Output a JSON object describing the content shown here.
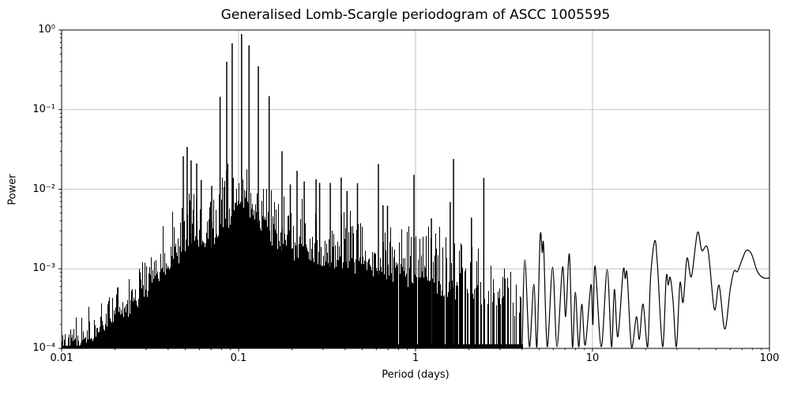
{
  "figure": {
    "background": "#ffffff"
  },
  "chart_data": {
    "type": "line",
    "title": "Generalised Lomb-Scargle periodogram of ASCC 1005595",
    "xlabel": "Period (days)",
    "ylabel": "Power",
    "xscale": "log",
    "yscale": "log",
    "xlim": [
      0.01,
      100
    ],
    "ylim": [
      0.0001,
      1
    ],
    "grid": true,
    "legend": false,
    "line_color": "#000000",
    "grid_color": "#b0b0b0",
    "x_tick_values": [
      0.01,
      0.1,
      1,
      10,
      100
    ],
    "x_tick_labels": [
      "0.01",
      "0.1",
      "1",
      "10",
      "100"
    ],
    "y_tick_values": [
      1,
      0.1,
      0.01,
      0.001,
      0.0001
    ],
    "y_tick_labels": [
      "10⁰",
      "10⁻¹",
      "10⁻²",
      "10⁻³",
      "10⁻⁴"
    ],
    "main_peak": {
      "period_days": 0.104,
      "power": 0.89
    },
    "peaks": [
      [
        0.0487,
        0.026
      ],
      [
        0.0512,
        0.034
      ],
      [
        0.0539,
        0.023
      ],
      [
        0.058,
        0.021
      ],
      [
        0.0615,
        0.013
      ],
      [
        0.0705,
        0.011
      ],
      [
        0.0786,
        0.145
      ],
      [
        0.0857,
        0.4
      ],
      [
        0.092,
        0.68
      ],
      [
        0.104,
        0.89
      ],
      [
        0.1145,
        0.64
      ],
      [
        0.1293,
        0.35
      ],
      [
        0.1489,
        0.148
      ],
      [
        0.176,
        0.03
      ],
      [
        0.196,
        0.0115
      ],
      [
        0.214,
        0.017
      ],
      [
        0.235,
        0.0125
      ],
      [
        0.274,
        0.0133
      ],
      [
        0.287,
        0.012
      ],
      [
        0.33,
        0.012
      ],
      [
        0.38,
        0.014
      ],
      [
        0.41,
        0.0095
      ],
      [
        0.47,
        0.0119
      ],
      [
        0.617,
        0.0208
      ],
      [
        0.655,
        0.0063
      ],
      [
        0.694,
        0.0062
      ],
      [
        0.98,
        0.0152
      ],
      [
        1.23,
        0.0043
      ],
      [
        1.57,
        0.0069
      ],
      [
        1.64,
        0.024
      ],
      [
        2.07,
        0.0044
      ],
      [
        2.43,
        0.0139
      ]
    ],
    "noise_envelope": [
      [
        0.01,
        0.00013,
        0.00022
      ],
      [
        0.013,
        0.00015,
        0.00032
      ],
      [
        0.017,
        0.00022,
        0.00055
      ],
      [
        0.022,
        0.00032,
        0.0011
      ],
      [
        0.028,
        0.00055,
        0.0017
      ],
      [
        0.035,
        0.0009,
        0.0035
      ],
      [
        0.042,
        0.0015,
        0.008
      ],
      [
        0.05,
        0.0022,
        0.014
      ],
      [
        0.06,
        0.0024,
        0.012
      ],
      [
        0.07,
        0.0028,
        0.016
      ],
      [
        0.085,
        0.0045,
        0.024
      ],
      [
        0.105,
        0.008,
        0.032
      ],
      [
        0.13,
        0.005,
        0.022
      ],
      [
        0.155,
        0.003,
        0.013
      ],
      [
        0.2,
        0.002,
        0.01
      ],
      [
        0.3,
        0.0016,
        0.008
      ],
      [
        0.45,
        0.0013,
        0.007
      ],
      [
        0.7,
        0.0011,
        0.005
      ],
      [
        1.0,
        0.00085,
        0.004
      ],
      [
        1.5,
        0.00065,
        0.0035
      ],
      [
        2.2,
        0.00055,
        0.0026
      ],
      [
        3.0,
        0.00045,
        0.0019
      ],
      [
        4.0,
        0.00038,
        0.0013
      ]
    ],
    "smooth_tail": [
      [
        4.0,
        0.000105
      ],
      [
        4.15,
        0.0013
      ],
      [
        4.4,
        0.000105
      ],
      [
        4.66,
        0.00064
      ],
      [
        4.85,
        0.000105
      ],
      [
        5.06,
        0.0025
      ],
      [
        5.2,
        0.0016
      ],
      [
        5.3,
        0.0019
      ],
      [
        5.55,
        0.000105
      ],
      [
        5.95,
        0.00105
      ],
      [
        6.3,
        0.000105
      ],
      [
        6.77,
        0.00105
      ],
      [
        7.05,
        0.00025
      ],
      [
        7.4,
        0.00153
      ],
      [
        7.7,
        0.000105
      ],
      [
        8.0,
        0.00051
      ],
      [
        8.35,
        0.000105
      ],
      [
        8.7,
        0.00036
      ],
      [
        9.1,
        0.00011
      ],
      [
        9.8,
        0.00063
      ],
      [
        10.05,
        0.0002
      ],
      [
        10.35,
        0.00108
      ],
      [
        11.2,
        0.000105
      ],
      [
        12.1,
        0.00098
      ],
      [
        12.8,
        0.000105
      ],
      [
        13.3,
        0.00055
      ],
      [
        13.9,
        0.00014
      ],
      [
        14.9,
        0.00094
      ],
      [
        15.3,
        0.00075
      ],
      [
        15.7,
        0.00084
      ],
      [
        16.6,
        0.000105
      ],
      [
        17.7,
        0.00025
      ],
      [
        18.4,
        0.00013
      ],
      [
        19.3,
        0.00036
      ],
      [
        20.5,
        0.000105
      ],
      [
        21.3,
        0.0008
      ],
      [
        22.5,
        0.00225
      ],
      [
        23.3,
        0.0011
      ],
      [
        24.9,
        0.000105
      ],
      [
        26.1,
        0.00078
      ],
      [
        26.8,
        0.00062
      ],
      [
        27.5,
        0.00078
      ],
      [
        28.5,
        0.0004
      ],
      [
        29.8,
        0.000105
      ],
      [
        31.2,
        0.00066
      ],
      [
        32.5,
        0.00038
      ],
      [
        34.2,
        0.00136
      ],
      [
        36.2,
        0.0008
      ],
      [
        39.2,
        0.00285
      ],
      [
        41.5,
        0.0017
      ],
      [
        44.9,
        0.00175
      ],
      [
        48.8,
        0.00031
      ],
      [
        51.9,
        0.00062
      ],
      [
        55.9,
        0.000175
      ],
      [
        60,
        0.00055
      ],
      [
        63,
        0.00093
      ],
      [
        66,
        0.00093
      ],
      [
        70,
        0.0013
      ],
      [
        74,
        0.0017
      ],
      [
        79,
        0.00155
      ],
      [
        85,
        0.00095
      ],
      [
        90,
        0.0008
      ],
      [
        95,
        0.00076
      ],
      [
        100,
        0.00077
      ]
    ]
  }
}
